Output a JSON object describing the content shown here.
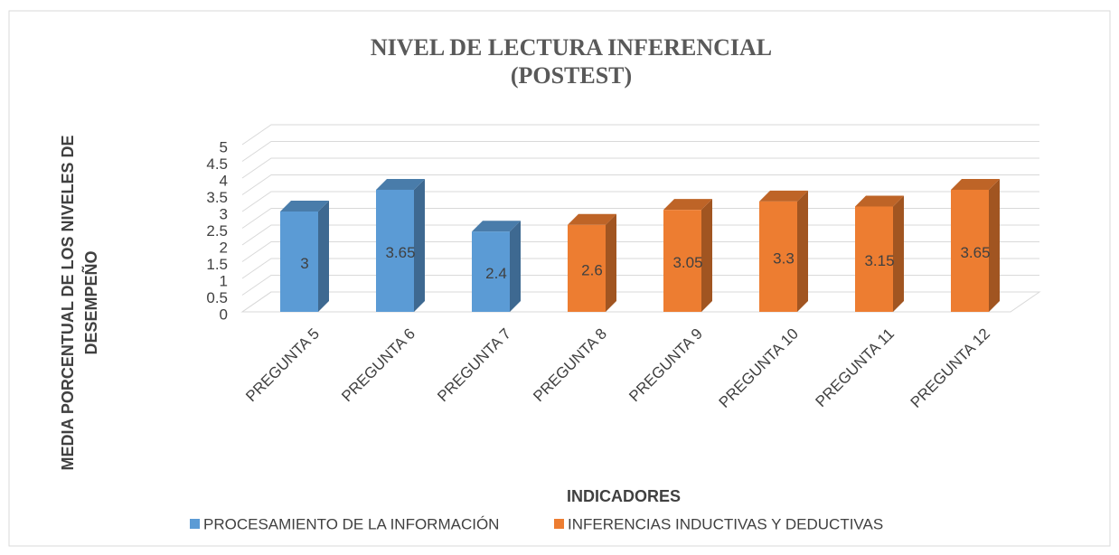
{
  "chart_data": {
    "type": "bar3d",
    "title": "NIVEL DE LECTURA INFERENCIAL",
    "subtitle": "(POSTEST)",
    "y_label": [
      "MEDIA PORCENTUAL DE LOS NIVELES DE",
      "DESEMPEÑO"
    ],
    "x_label": "INDICADORES",
    "categories": [
      "PREGUNTA 5",
      "PREGUNTA 6",
      "PREGUNTA 7",
      "PREGUNTA 8",
      "PREGUNTA 9",
      "PREGUNTA 10",
      "PREGUNTA 11",
      "PREGUNTA 12"
    ],
    "series": [
      {
        "name": "PROCESAMIENTO DE LA INFORMACIÓN",
        "color": "#5b9bd5",
        "values": [
          3,
          3.65,
          2.4,
          null,
          null,
          null,
          null,
          null
        ]
      },
      {
        "name": "INFERENCIAS INDUCTIVAS Y DEDUCTIVAS",
        "color": "#ed7d31",
        "values": [
          null,
          null,
          null,
          2.6,
          3.05,
          3.3,
          3.15,
          3.65
        ]
      }
    ],
    "ylim": [
      0,
      5
    ],
    "yticks": [
      0,
      0.5,
      1,
      1.5,
      2,
      2.5,
      3,
      3.5,
      4,
      4.5,
      5
    ],
    "grid": true,
    "legend": "bottom"
  }
}
